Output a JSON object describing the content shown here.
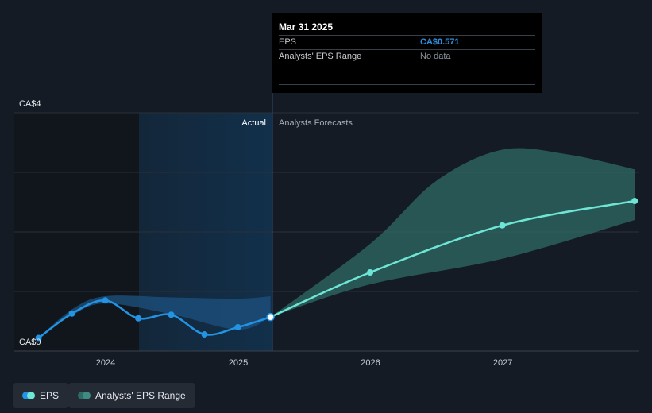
{
  "tooltip": {
    "date": "Mar 31 2025",
    "eps_label": "EPS",
    "eps_value": "CA$0.571",
    "range_label": "Analysts' EPS Range",
    "range_value": "No data"
  },
  "labels": {
    "actual": "Actual",
    "forecast": "Analysts Forecasts"
  },
  "legend": {
    "eps": "EPS",
    "range": "Analysts' EPS Range"
  },
  "colors": {
    "background": "#151b24",
    "eps_actual": "#2394e3",
    "eps_forecast": "#6ee6d5",
    "range_fill": "#2f6b66",
    "highlight": "#12304b"
  },
  "chart_data": {
    "type": "line",
    "ylim": [
      0,
      4
    ],
    "y_ticks": [
      "CA$0",
      "CA$4"
    ],
    "x_ticks": [
      "2024",
      "2025",
      "2026",
      "2027"
    ],
    "series": [
      {
        "name": "EPS",
        "kind": "actual",
        "points": [
          [
            "2023-06-30",
            0.22
          ],
          [
            "2023-09-30",
            0.63
          ],
          [
            "2023-12-31",
            0.85
          ],
          [
            "2024-03-31",
            0.55
          ],
          [
            "2024-06-30",
            0.61
          ],
          [
            "2024-09-30",
            0.28
          ],
          [
            "2024-12-31",
            0.4
          ],
          [
            "2025-03-31",
            0.571
          ]
        ]
      },
      {
        "name": "EPS",
        "kind": "forecast",
        "points": [
          [
            "2025-03-31",
            0.571
          ],
          [
            "2025-12-31",
            1.32
          ],
          [
            "2026-12-31",
            2.11
          ],
          [
            "2027-12-31",
            2.52
          ]
        ]
      }
    ],
    "ranges": [
      {
        "name": "Analysts' EPS Range",
        "kind": "historical",
        "upper": [
          [
            "2023-06-30",
            0.22
          ],
          [
            "2023-09-30",
            0.7
          ],
          [
            "2023-12-31",
            0.92
          ],
          [
            "2024-06-30",
            0.9
          ],
          [
            "2024-12-31",
            0.88
          ],
          [
            "2025-03-31",
            0.92
          ]
        ],
        "lower": [
          [
            "2023-06-30",
            0.22
          ],
          [
            "2023-09-30",
            0.6
          ],
          [
            "2023-12-31",
            0.8
          ],
          [
            "2024-06-30",
            0.62
          ],
          [
            "2024-12-31",
            0.36
          ],
          [
            "2025-03-31",
            0.571
          ]
        ]
      },
      {
        "name": "Analysts' EPS Range",
        "kind": "forecast",
        "upper": [
          [
            "2025-03-31",
            0.571
          ],
          [
            "2025-12-31",
            1.8
          ],
          [
            "2026-06-30",
            2.85
          ],
          [
            "2026-12-31",
            3.38
          ],
          [
            "2027-06-30",
            3.3
          ],
          [
            "2027-12-31",
            3.05
          ]
        ],
        "lower": [
          [
            "2025-03-31",
            0.571
          ],
          [
            "2025-12-31",
            1.12
          ],
          [
            "2026-12-31",
            1.55
          ],
          [
            "2027-12-31",
            2.2
          ]
        ]
      }
    ]
  }
}
